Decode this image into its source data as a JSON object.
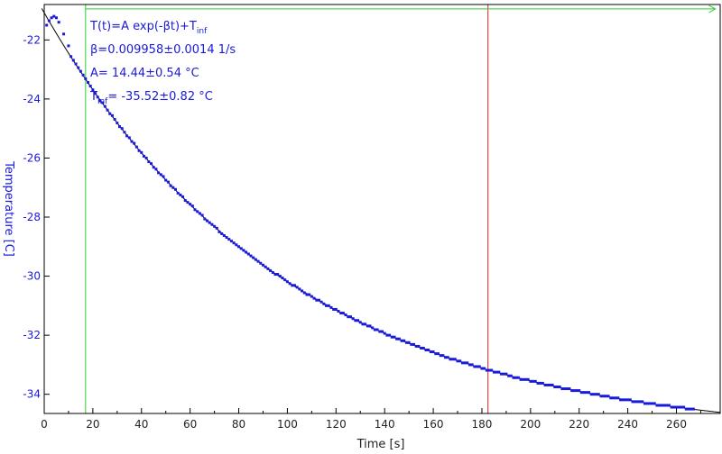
{
  "chart_data": {
    "type": "scatter",
    "xlabel": "Time [s]",
    "ylabel": "Temperature [C]",
    "xlim": [
      0,
      278
    ],
    "ylim": [
      -34.65,
      -20.8
    ],
    "x_ticks": [
      0,
      20,
      40,
      60,
      80,
      100,
      120,
      140,
      160,
      180,
      200,
      220,
      240,
      260
    ],
    "x_tick_labels": [
      "0",
      "20",
      "40",
      "60",
      "80",
      "100",
      "120",
      "140",
      "160",
      "180",
      "200",
      "220",
      "240",
      "260"
    ],
    "y_ticks": [
      -22,
      -24,
      -26,
      -28,
      -30,
      -32,
      -34
    ],
    "y_tick_labels": [
      "-22",
      "-24",
      "-26",
      "-28",
      "-30",
      "-32",
      "-34"
    ],
    "grid": false,
    "series": [
      {
        "kind": "measured-points",
        "color": "#1a1adb",
        "x_start": 0.5,
        "x_end": 267,
        "x_step": 1,
        "points": [
          {
            "x": 1,
            "y": -21.5
          },
          {
            "x": 2,
            "y": -21.35
          },
          {
            "x": 3,
            "y": -21.25
          },
          {
            "x": 4,
            "y": -21.2
          },
          {
            "x": 5,
            "y": -21.25
          },
          {
            "x": 6,
            "y": -21.4
          },
          {
            "x": 8,
            "y": -21.8
          },
          {
            "x": 10,
            "y": -22.2
          }
        ]
      },
      {
        "kind": "fit-line",
        "color": "#000000",
        "A": 14.44,
        "beta": 0.009958,
        "T_inf": -35.52,
        "x_range": [
          -1,
          278
        ]
      }
    ],
    "markers": [
      {
        "kind": "vertical-line",
        "x": 17,
        "color": "#2ecc2e"
      },
      {
        "kind": "vertical-line",
        "x": 182.5,
        "color": "#cc2222"
      },
      {
        "kind": "horizontal-arrow",
        "y": -20.95,
        "x_from": 17,
        "x_to": 276,
        "color": "#2ecc2e"
      }
    ],
    "annotations": {
      "formula_main": "T(t)=A exp(-βt)+T",
      "formula_sub": "inf",
      "beta_text": "β=0.009958±0.0014 1/s",
      "a_text": "A= 14.44±0.54 °C",
      "tinf_main": "T",
      "tinf_sub": "inf",
      "tinf_rest": "= -35.52±0.82 °C"
    }
  }
}
